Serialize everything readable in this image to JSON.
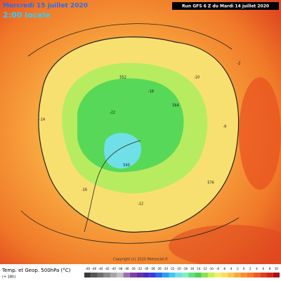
{
  "header": {
    "date": "Mercredi 15 juillet 2020",
    "time": "2:00 locale",
    "run": "Run GFS 6 Z du Mardi 14 juillet 2020"
  },
  "map": {
    "copyright": "Copyright (c) 2020 Meteociel.fr",
    "labels": [
      "552",
      "564",
      "576",
      "540",
      "-14",
      "-22",
      "-18",
      "-10",
      "-6",
      "-2",
      "-16",
      "-12"
    ]
  },
  "legend": {
    "title": "Temp. et Geop. 500hPa (°C)",
    "note": "(+ 18h)",
    "ticks": [
      -48,
      -46,
      -44,
      -42,
      -40,
      -38,
      -36,
      -34,
      -32,
      -30,
      -28,
      -26,
      -24,
      -22,
      -20,
      -18,
      -16,
      -14,
      -12,
      -10,
      -8,
      -6,
      -4,
      -2,
      0,
      2,
      4,
      6,
      8,
      10
    ],
    "colors": [
      "#3a3a3a",
      "#555",
      "#6e6e6e",
      "#8a8a8a",
      "#a5a5a5",
      "#c0c0c0",
      "#9b6fb3",
      "#8040a0",
      "#6a2fa8",
      "#4b2ac0",
      "#3a3ee0",
      "#2a6cf0",
      "#2a9cf5",
      "#40c8f0",
      "#70e0e8",
      "#80f0c0",
      "#60e080",
      "#50d050",
      "#90e050",
      "#c8f050",
      "#f0f070",
      "#f8e060",
      "#f8c850",
      "#f8a840",
      "#f89030",
      "#f87828",
      "#f05a20",
      "#e04020",
      "#d02818",
      "#b01010"
    ]
  }
}
